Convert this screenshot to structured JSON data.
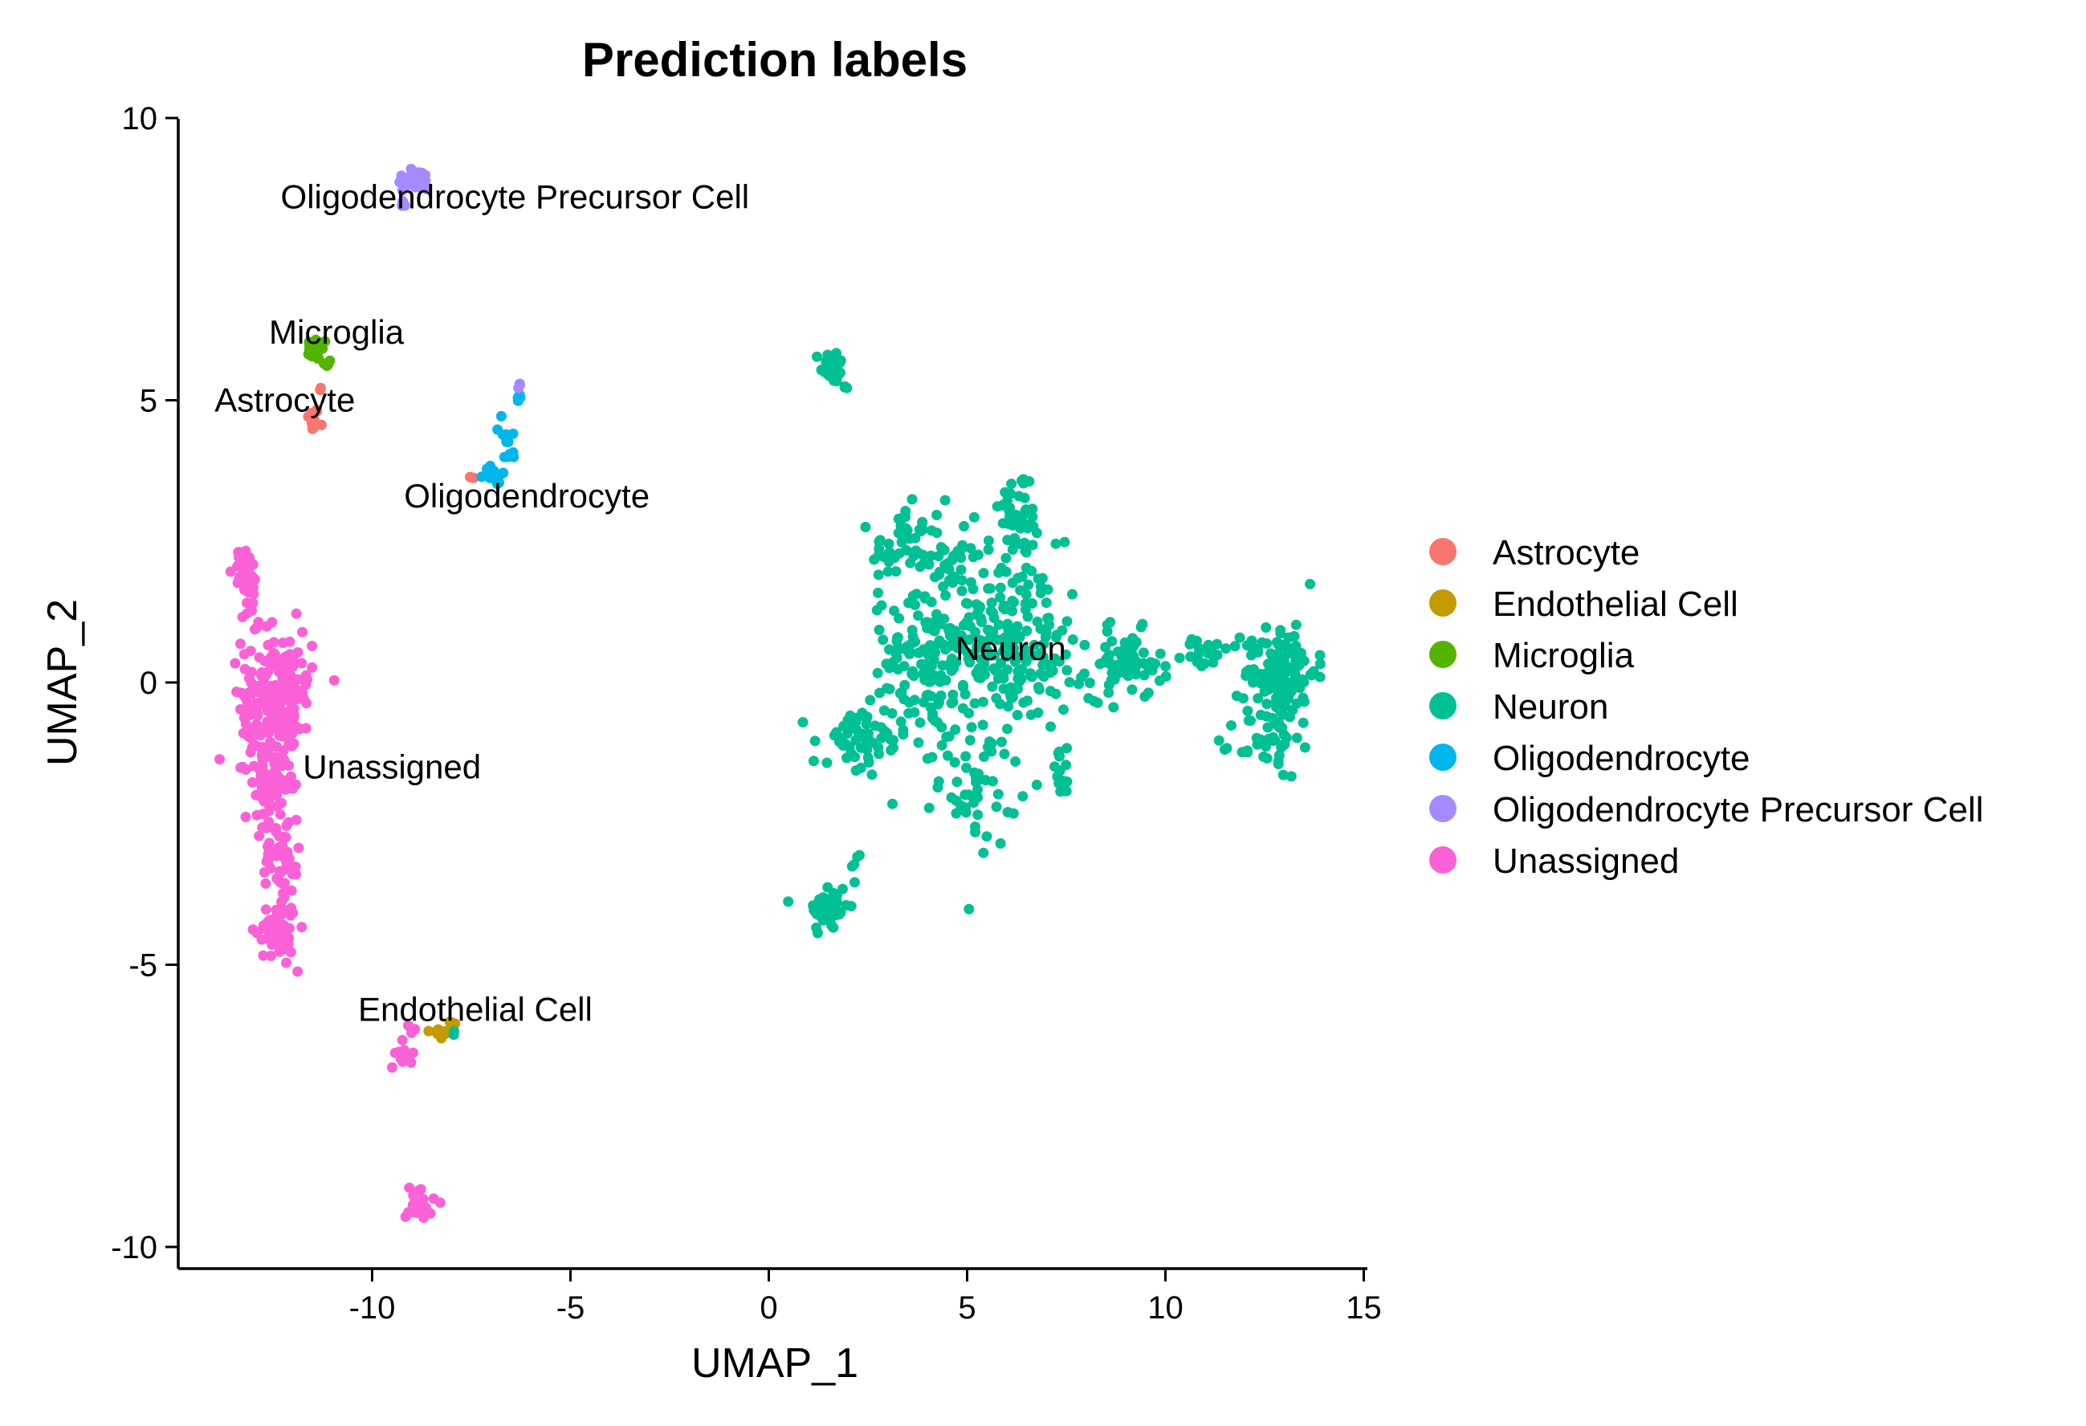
{
  "chart_data": {
    "type": "scatter",
    "title": "Prediction labels",
    "xlabel": "UMAP_1",
    "ylabel": "UMAP_2",
    "xlim": [
      -15,
      15
    ],
    "ylim": [
      -10.5,
      10
    ],
    "xticks": [
      -10,
      -5,
      0,
      5,
      10,
      15
    ],
    "yticks": [
      -10,
      -5,
      0,
      5,
      10
    ],
    "xtick_labels": [
      "-10",
      "-5",
      "0",
      "5",
      "10",
      "15"
    ],
    "ytick_labels": [
      "-10",
      "-5",
      "0",
      "5",
      "10"
    ],
    "grid": false,
    "legend_position": "right",
    "series": [
      {
        "name": "Astrocyte",
        "color": "#F8766D",
        "label": "Astrocyte",
        "clusters": [
          {
            "center": [
              -11.5,
              4.65
            ],
            "sx": 0.08,
            "sy": 0.12,
            "n": 12
          },
          {
            "center": [
              -11.3,
              5.2
            ],
            "sx": 0.05,
            "sy": 0.05,
            "n": 2
          },
          {
            "center": [
              -7.5,
              3.6
            ],
            "sx": 0.05,
            "sy": 0.05,
            "n": 2
          }
        ]
      },
      {
        "name": "Endothelial Cell",
        "color": "#C49A00",
        "label": "Endothelial Cell",
        "clusters": [
          {
            "center": [
              -8.3,
              -6.2
            ],
            "sx": 0.15,
            "sy": 0.06,
            "n": 10
          },
          {
            "center": [
              -8.0,
              -6.1
            ],
            "sx": 0.08,
            "sy": 0.06,
            "n": 6
          }
        ]
      },
      {
        "name": "Microglia",
        "color": "#53B400",
        "label": "Microglia",
        "clusters": [
          {
            "center": [
              -11.4,
              5.9
            ],
            "sx": 0.14,
            "sy": 0.1,
            "n": 22
          },
          {
            "center": [
              -11.1,
              5.65
            ],
            "sx": 0.06,
            "sy": 0.06,
            "n": 5
          }
        ]
      },
      {
        "name": "Neuron",
        "color": "#00C094",
        "label": "Neuron",
        "clusters": [
          {
            "center": [
              1.6,
              5.6
            ],
            "sx": 0.15,
            "sy": 0.15,
            "n": 30
          },
          {
            "center": [
              1.9,
              5.2
            ],
            "sx": 0.05,
            "sy": 0.05,
            "n": 3
          },
          {
            "center": [
              1.5,
              -4.0
            ],
            "sx": 0.25,
            "sy": 0.25,
            "n": 45
          },
          {
            "center": [
              2.2,
              -3.3
            ],
            "sx": 0.1,
            "sy": 0.2,
            "n": 5
          },
          {
            "center": [
              6.3,
              3.0
            ],
            "sx": 0.25,
            "sy": 0.4,
            "n": 45
          },
          {
            "center": [
              3.3,
              2.4
            ],
            "sx": 0.35,
            "sy": 0.35,
            "n": 40
          },
          {
            "center": [
              4.2,
              2.3
            ],
            "sx": 0.4,
            "sy": 0.4,
            "n": 30
          },
          {
            "center": [
              5.3,
              0.9
            ],
            "sx": 1.0,
            "sy": 0.8,
            "n": 200
          },
          {
            "center": [
              4.0,
              0.3
            ],
            "sx": 0.7,
            "sy": 0.6,
            "n": 80
          },
          {
            "center": [
              6.5,
              0.4
            ],
            "sx": 0.7,
            "sy": 0.5,
            "n": 70
          },
          {
            "center": [
              5.3,
              -1.7
            ],
            "sx": 0.5,
            "sy": 0.6,
            "n": 55
          },
          {
            "center": [
              2.3,
              -1.1
            ],
            "sx": 0.6,
            "sy": 0.35,
            "n": 60
          },
          {
            "center": [
              7.4,
              -1.6
            ],
            "sx": 0.15,
            "sy": 0.2,
            "n": 15
          },
          {
            "center": [
              9.0,
              0.3
            ],
            "sx": 0.45,
            "sy": 0.3,
            "n": 70
          },
          {
            "center": [
              11.0,
              0.5
            ],
            "sx": 0.3,
            "sy": 0.15,
            "n": 20
          },
          {
            "center": [
              12.9,
              0.2
            ],
            "sx": 0.45,
            "sy": 0.45,
            "n": 130
          },
          {
            "center": [
              12.6,
              -1.1
            ],
            "sx": 0.4,
            "sy": 0.3,
            "n": 40
          },
          {
            "center": [
              -13.0,
              -0.9
            ],
            "sx": 0.03,
            "sy": 0.03,
            "n": 1
          },
          {
            "center": [
              -8.0,
              -6.2
            ],
            "sx": 0.05,
            "sy": 0.05,
            "n": 2
          }
        ]
      },
      {
        "name": "Oligodendrocyte",
        "color": "#00B6EB",
        "label": "Oligodendrocyte",
        "clusters": [
          {
            "center": [
              -6.9,
              3.7
            ],
            "sx": 0.15,
            "sy": 0.1,
            "n": 12
          },
          {
            "center": [
              -6.6,
              4.2
            ],
            "sx": 0.12,
            "sy": 0.25,
            "n": 12
          },
          {
            "center": [
              -6.3,
              5.05
            ],
            "sx": 0.05,
            "sy": 0.1,
            "n": 4
          }
        ]
      },
      {
        "name": "Oligodendrocyte Precursor Cell",
        "color": "#A58AFF",
        "label": "Oligodendrocyte Precursor Cell",
        "clusters": [
          {
            "center": [
              -8.9,
              8.9
            ],
            "sx": 0.25,
            "sy": 0.1,
            "n": 28
          },
          {
            "center": [
              -9.2,
              8.55
            ],
            "sx": 0.06,
            "sy": 0.08,
            "n": 5
          },
          {
            "center": [
              -6.3,
              5.25
            ],
            "sx": 0.04,
            "sy": 0.03,
            "n": 3
          }
        ]
      },
      {
        "name": "Unassigned",
        "color": "#FB61D7",
        "label": "Unassigned",
        "clusters": [
          {
            "center": [
              -13.2,
              2.0
            ],
            "sx": 0.15,
            "sy": 0.2,
            "n": 30
          },
          {
            "center": [
              -13.0,
              1.2
            ],
            "sx": 0.1,
            "sy": 0.3,
            "n": 12
          },
          {
            "center": [
              -12.4,
              -0.2
            ],
            "sx": 0.45,
            "sy": 0.55,
            "n": 200
          },
          {
            "center": [
              -12.6,
              -1.8
            ],
            "sx": 0.3,
            "sy": 0.5,
            "n": 80
          },
          {
            "center": [
              -12.3,
              -3.2
            ],
            "sx": 0.25,
            "sy": 0.4,
            "n": 50
          },
          {
            "center": [
              -12.4,
              -4.4
            ],
            "sx": 0.25,
            "sy": 0.25,
            "n": 60
          },
          {
            "center": [
              -9.2,
              -6.6
            ],
            "sx": 0.1,
            "sy": 0.12,
            "n": 14
          },
          {
            "center": [
              -9.0,
              -6.1
            ],
            "sx": 0.05,
            "sy": 0.05,
            "n": 3
          },
          {
            "center": [
              -8.8,
              -9.2
            ],
            "sx": 0.18,
            "sy": 0.18,
            "n": 22
          }
        ]
      }
    ],
    "annotations": [
      {
        "text": "Oligodendrocyte Precursor Cell",
        "x": -6.4,
        "y": 8.6
      },
      {
        "text": "Microglia",
        "x": -10.9,
        "y": 6.2
      },
      {
        "text": "Astrocyte",
        "x": -12.2,
        "y": 5.0
      },
      {
        "text": "Oligodendrocyte",
        "x": -6.1,
        "y": 3.3
      },
      {
        "text": "Neuron",
        "x": 6.1,
        "y": 0.6
      },
      {
        "text": "Unassigned",
        "x": -9.5,
        "y": -1.5
      },
      {
        "text": "Endothelial Cell",
        "x": -7.4,
        "y": -5.8
      }
    ]
  }
}
